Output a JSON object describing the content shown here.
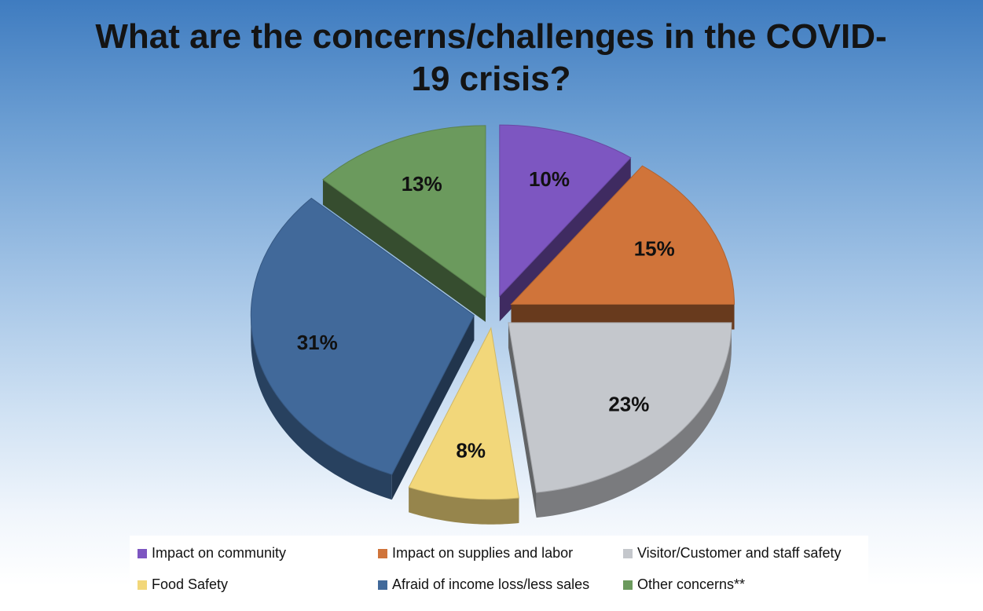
{
  "chart_data": {
    "type": "pie",
    "title": "What are the concerns/challenges in the COVID-19 crisis?",
    "slices": [
      {
        "label": "Impact on community",
        "value": 10,
        "display": "10%",
        "color": "#7d56c1"
      },
      {
        "label": "Impact on supplies and labor",
        "value": 15,
        "display": "15%",
        "color": "#d0743a"
      },
      {
        "label": "Visitor/Customer and staff safety",
        "value": 23,
        "display": "23%",
        "color": "#c4c7cc"
      },
      {
        "label": "Food Safety",
        "value": 8,
        "display": "8%",
        "color": "#f2d77a"
      },
      {
        "label": "Afraid of income loss/less sales",
        "value": 31,
        "display": "31%",
        "color": "#41699a"
      },
      {
        "label": "Other concerns**",
        "value": 13,
        "display": "13%",
        "color": "#6b9a5d"
      }
    ],
    "legend_position": "bottom",
    "exploded": true,
    "style": "3d"
  }
}
